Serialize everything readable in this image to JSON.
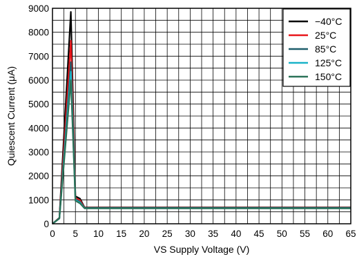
{
  "chart_data": {
    "type": "line",
    "xlabel": "VS Supply Voltage (V)",
    "ylabel": "Quiescent Current (μA)",
    "xlim": [
      0,
      65
    ],
    "ylim": [
      0,
      9000
    ],
    "x_ticks": [
      "0",
      "5",
      "10",
      "15",
      "20",
      "25",
      "30",
      "35",
      "40",
      "45",
      "50",
      "55",
      "60",
      "65"
    ],
    "y_ticks": [
      "0",
      "1000",
      "2000",
      "3000",
      "4000",
      "5000",
      "6000",
      "7000",
      "8000",
      "9000"
    ],
    "grid": true,
    "legend_position": "top-right",
    "series": [
      {
        "name": "−40°C",
        "color": "#000000",
        "x": [
          0,
          1.5,
          4.0,
          5.0,
          6.0,
          7.0,
          65
        ],
        "y": [
          0,
          250,
          8850,
          1150,
          1050,
          680,
          680
        ]
      },
      {
        "name": "25°C",
        "color": "#e8161b",
        "x": [
          0,
          1.5,
          4.0,
          5.0,
          6.0,
          7.0,
          65
        ],
        "y": [
          0,
          240,
          7650,
          1080,
          980,
          670,
          670
        ]
      },
      {
        "name": "85°C",
        "color": "#1d5d6b",
        "x": [
          0,
          1.5,
          4.0,
          5.0,
          6.0,
          7.0,
          65
        ],
        "y": [
          0,
          230,
          6750,
          1020,
          920,
          660,
          660
        ]
      },
      {
        "name": "125°C",
        "color": "#19b3c8",
        "x": [
          0,
          1.5,
          4.0,
          5.0,
          6.0,
          7.0,
          65
        ],
        "y": [
          0,
          225,
          6350,
          990,
          880,
          650,
          650
        ]
      },
      {
        "name": "150°C",
        "color": "#2a7258",
        "x": [
          0,
          1.5,
          4.0,
          5.0,
          6.0,
          7.0,
          65
        ],
        "y": [
          0,
          220,
          6000,
          960,
          850,
          645,
          645
        ]
      }
    ]
  }
}
